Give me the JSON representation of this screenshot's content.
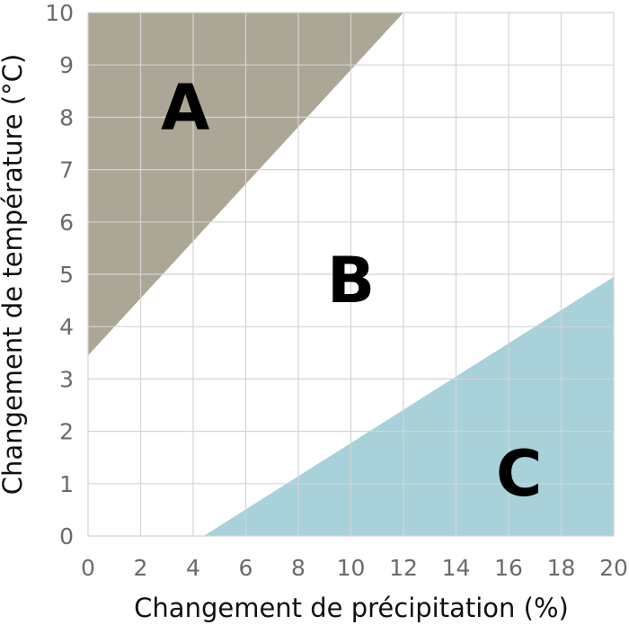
{
  "chart_data": {
    "type": "area",
    "xlabel": "Changement de précipitation (%)",
    "ylabel": "Changement de température (°C)",
    "xlim": [
      0,
      20
    ],
    "ylim": [
      0,
      10
    ],
    "x_ticks": [
      0,
      2,
      4,
      6,
      8,
      10,
      12,
      14,
      16,
      18,
      20
    ],
    "y_ticks": [
      0,
      1,
      2,
      3,
      4,
      5,
      6,
      7,
      8,
      9,
      10
    ],
    "grid": true,
    "regions": [
      {
        "label": "A",
        "color": "#aca696",
        "polygon": [
          [
            0,
            3.45
          ],
          [
            0,
            10
          ],
          [
            12,
            10
          ]
        ],
        "label_position": [
          3.7,
          8.2
        ]
      },
      {
        "label": "B",
        "color": "#ffffff",
        "polygon": [],
        "label_position": [
          10,
          4.9
        ]
      },
      {
        "label": "C",
        "color": "#a8d1da",
        "polygon": [
          [
            4.4,
            0
          ],
          [
            20,
            0
          ],
          [
            20,
            4.95
          ]
        ],
        "label_position": [
          16.4,
          1.2
        ]
      }
    ]
  }
}
